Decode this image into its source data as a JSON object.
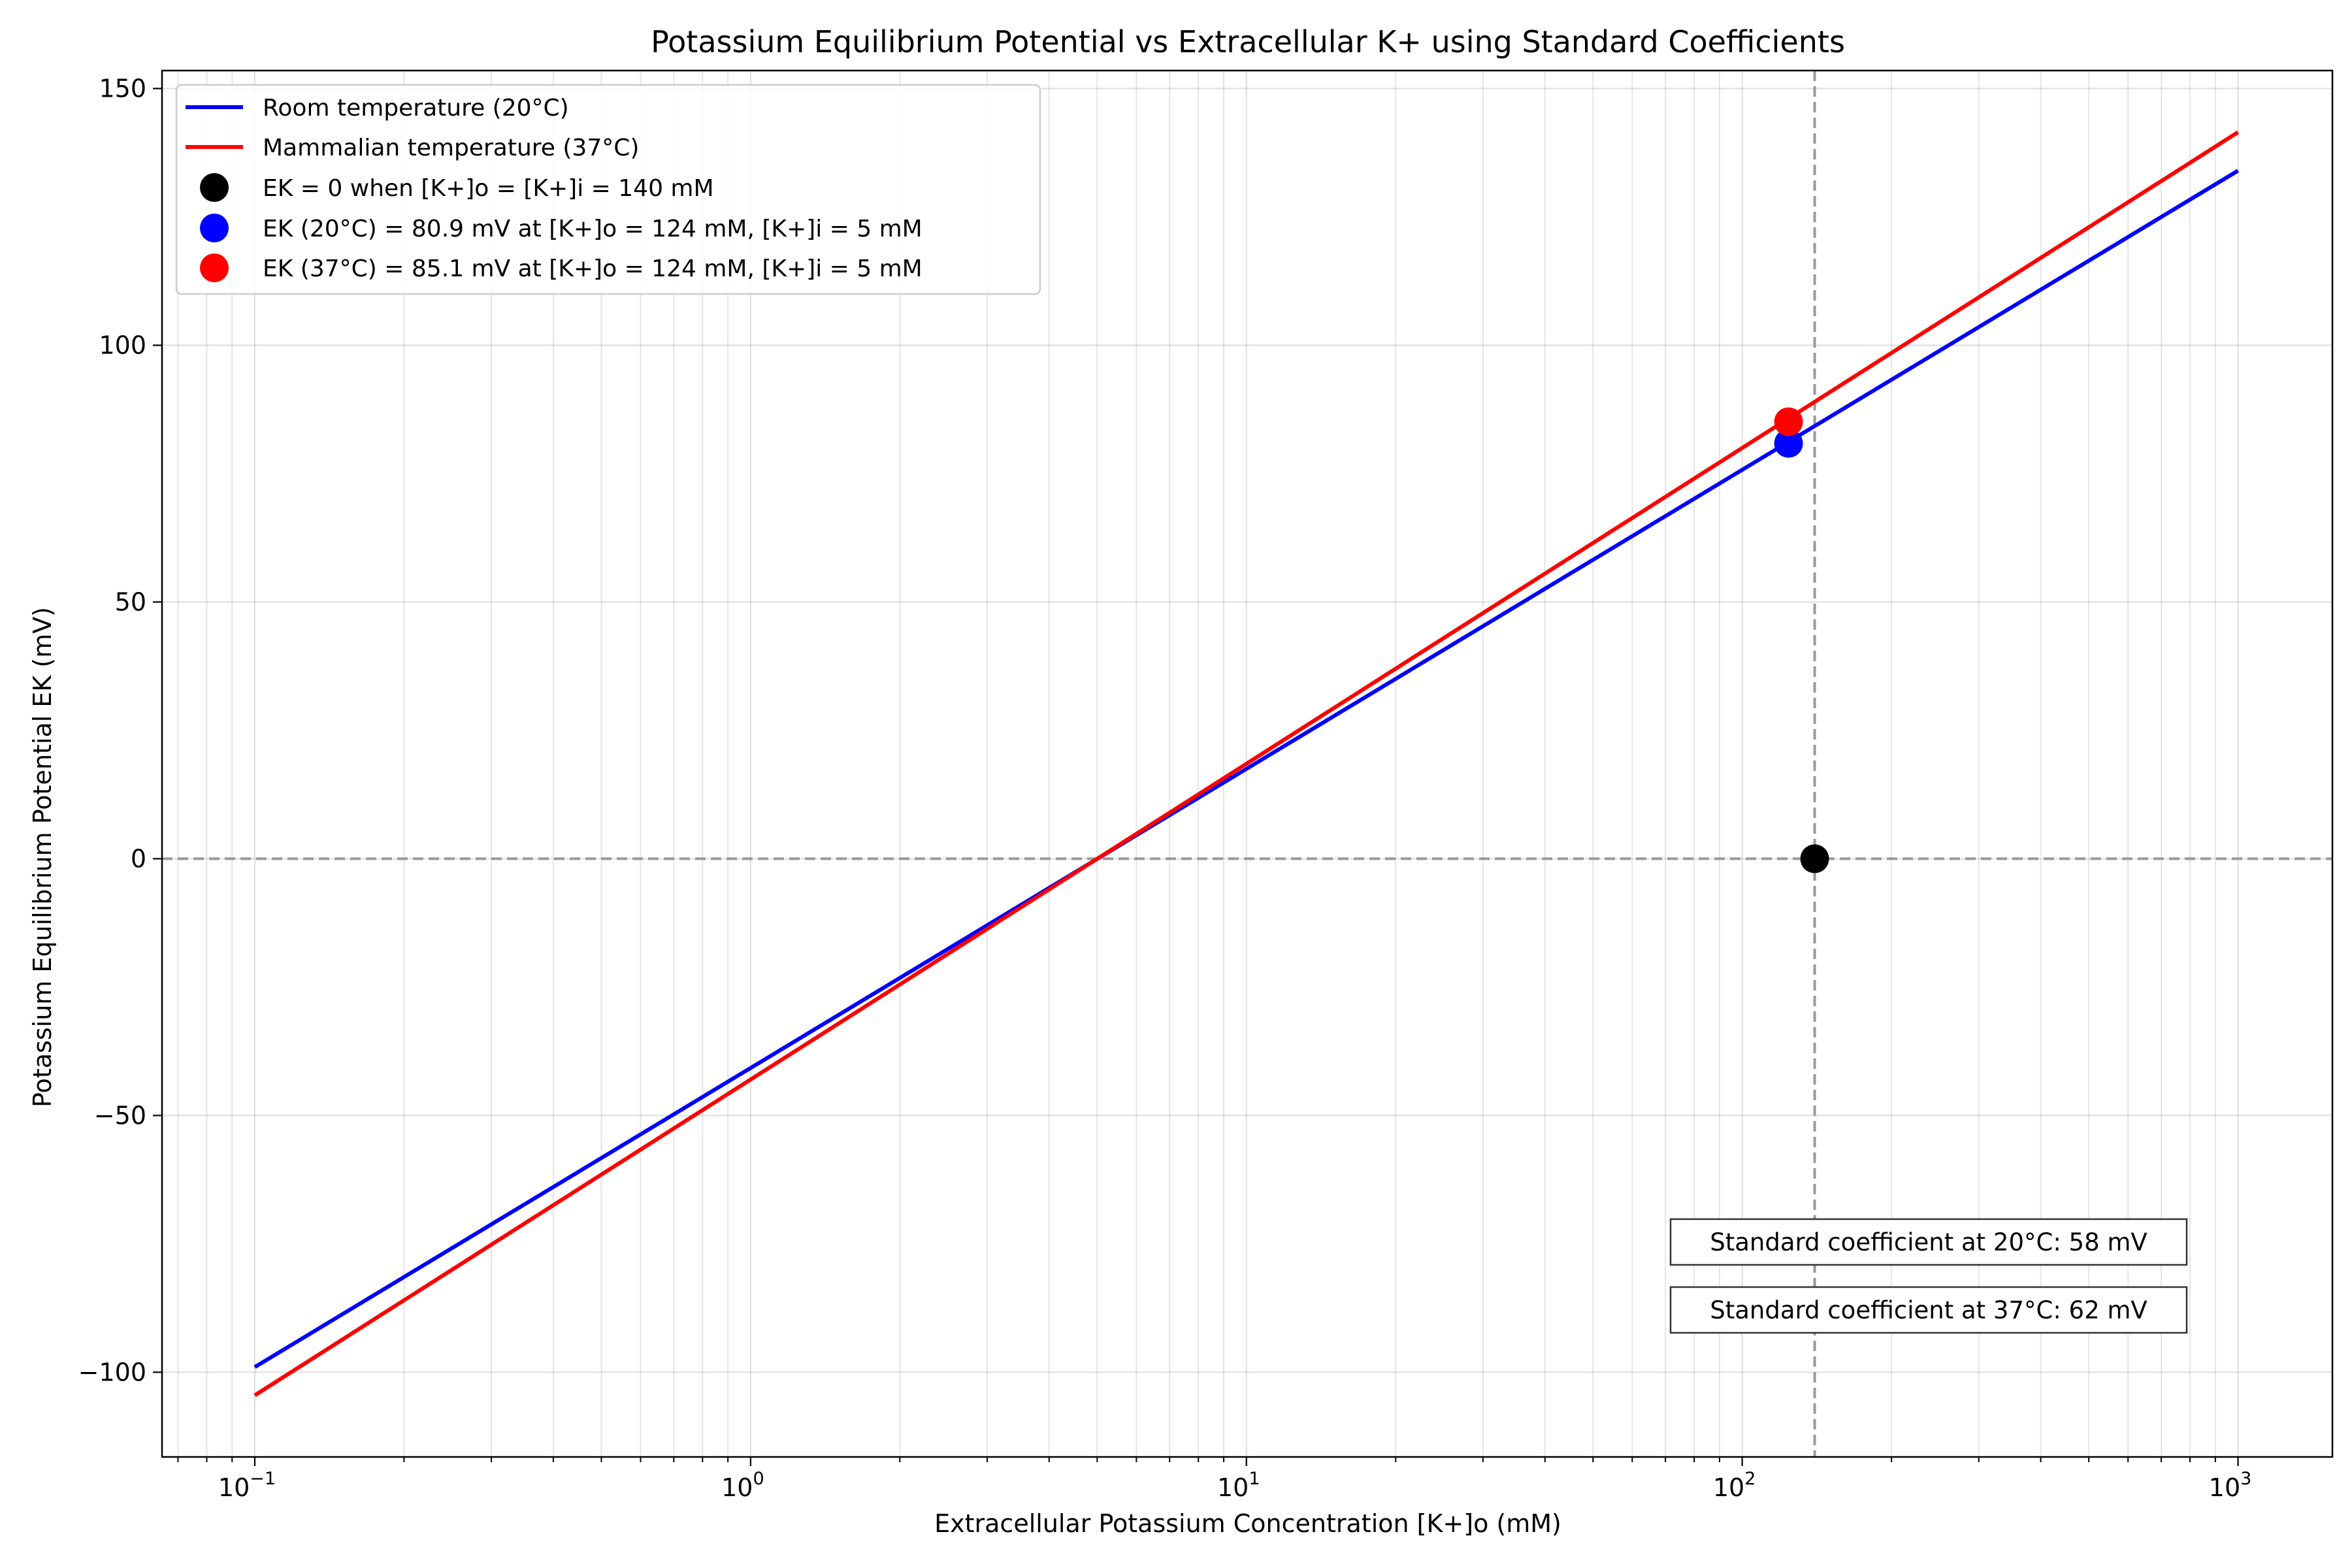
{
  "chart_data": {
    "type": "line",
    "title": "Potassium Equilibrium Potential vs Extracellular K+ using Standard Coefficients",
    "xlabel": "Extracellular Potassium Concentration [K+]o (mM)",
    "ylabel": "Potassium Equilibrium Potential EK (mV)",
    "xscale": "log",
    "xlim": [
      0.065,
      1550
    ],
    "ylim": [
      -116.5,
      153.5
    ],
    "grid": true,
    "legend_position": "top-left",
    "x_ticks": [
      {
        "value": 0.1,
        "base": "10",
        "exp": "−1"
      },
      {
        "value": 1,
        "base": "10",
        "exp": "0"
      },
      {
        "value": 10,
        "base": "10",
        "exp": "1"
      },
      {
        "value": 100,
        "base": "10",
        "exp": "2"
      },
      {
        "value": 1000,
        "base": "10",
        "exp": "3"
      }
    ],
    "y_ticks": [
      {
        "value": 150,
        "label": "150"
      },
      {
        "value": 100,
        "label": "100"
      },
      {
        "value": 50,
        "label": "50"
      },
      {
        "value": 0,
        "label": "0"
      },
      {
        "value": -50,
        "label": "−50"
      },
      {
        "value": -100,
        "label": "−100"
      }
    ],
    "series": [
      {
        "name": "Room temperature (20°C)",
        "color": "#0000ff",
        "x": [
          0.1,
          1000
        ],
        "y": [
          -99,
          134
        ]
      },
      {
        "name": "Mammalian temperature (37°C)",
        "color": "#ff0000",
        "x": [
          0.1,
          1000
        ],
        "y": [
          -104.5,
          141.5
        ]
      }
    ],
    "points": [
      {
        "name": "EK = 0 when [K+]o = [K+]i = 140 mM",
        "color": "#000000",
        "x": 140,
        "y": 0
      },
      {
        "name": "EK (20°C) = 80.9 mV at [K+]o = 124 mM, [K+]i = 5 mM",
        "color": "#0000ff",
        "x": 124,
        "y": 80.9
      },
      {
        "name": "EK (37°C) = 85.1 mV at [K+]o = 124 mM, [K+]i = 5 mM",
        "color": "#ff0000",
        "x": 124,
        "y": 85.1
      }
    ],
    "reference_lines": [
      {
        "orientation": "horizontal",
        "value": 0,
        "color": "#999999",
        "style": "dashed"
      },
      {
        "orientation": "vertical",
        "value": 140,
        "color": "#999999",
        "style": "dashed"
      }
    ],
    "annotations": [
      "Standard coefficient at 20°C: 58 mV",
      "Standard coefficient at 37°C: 62 mV"
    ]
  }
}
